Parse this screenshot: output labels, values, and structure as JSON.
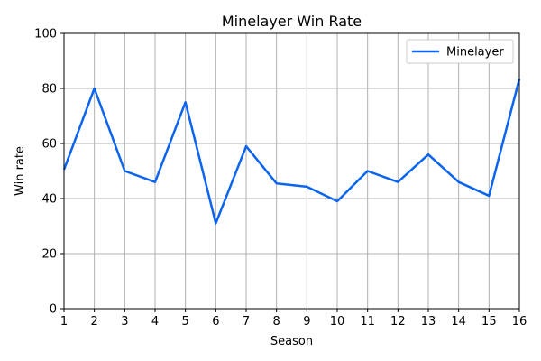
{
  "chart_data": {
    "type": "line",
    "title": "Minelayer Win Rate",
    "xlabel": "Season",
    "ylabel": "Win rate",
    "x": [
      1,
      2,
      3,
      4,
      5,
      6,
      7,
      8,
      9,
      10,
      11,
      12,
      13,
      14,
      15,
      16
    ],
    "series": [
      {
        "name": "Minelayer",
        "values": [
          50.5,
          80,
          50,
          46,
          75,
          31,
          59,
          45.5,
          44.3,
          39,
          50,
          46,
          56,
          46,
          41,
          83.5
        ]
      }
    ],
    "xlim": [
      1,
      16
    ],
    "ylim": [
      0,
      100
    ],
    "xticks": [
      "1",
      "2",
      "3",
      "4",
      "5",
      "6",
      "7",
      "8",
      "9",
      "10",
      "11",
      "12",
      "13",
      "14",
      "15",
      "16"
    ],
    "yticks": [
      "0",
      "20",
      "40",
      "60",
      "80",
      "100"
    ],
    "grid": true,
    "legend_position": "top-right",
    "colors": {
      "line": "#0a64f0",
      "grid": "#b0b0b0",
      "axis": "#000000"
    }
  }
}
